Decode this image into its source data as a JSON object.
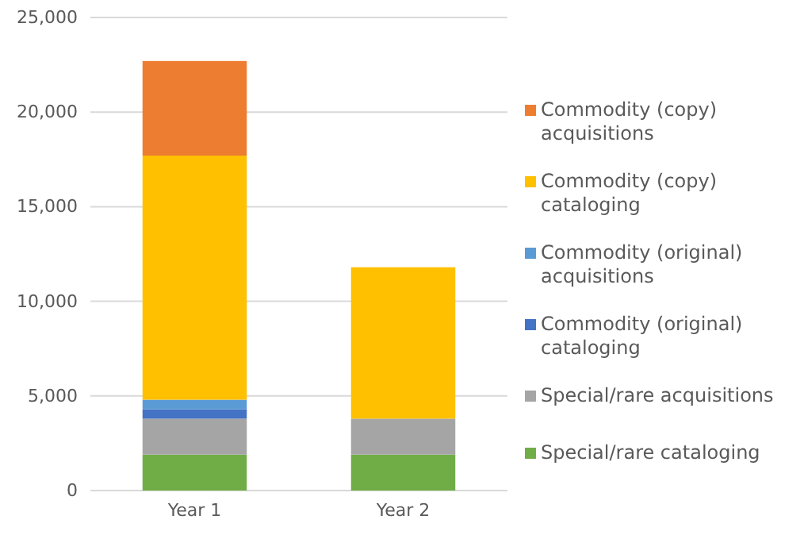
{
  "chart_data": {
    "type": "bar",
    "stacked": true,
    "categories": [
      "Year 1",
      "Year 2"
    ],
    "series": [
      {
        "name": "Special/rare cataloging",
        "color": "#70ad47",
        "values": [
          1900,
          1900
        ]
      },
      {
        "name": "Special/rare acquisitions",
        "color": "#a5a5a5",
        "values": [
          1900,
          1900
        ]
      },
      {
        "name": "Commodity (original) cataloging",
        "color": "#4472c4",
        "values": [
          500,
          0
        ]
      },
      {
        "name": "Commodity (original) acquisitions",
        "color": "#5b9bd5",
        "values": [
          500,
          0
        ]
      },
      {
        "name": "Commodity (copy) cataloging",
        "color": "#ffc000",
        "values": [
          12900,
          8000
        ]
      },
      {
        "name": "Commodity (copy) acquisitions",
        "color": "#ed7d31",
        "values": [
          5000,
          0
        ]
      }
    ],
    "ylim": [
      0,
      25000
    ],
    "yticks": [
      {
        "value": 0,
        "label": "0"
      },
      {
        "value": 5000,
        "label": "5,000"
      },
      {
        "value": 10000,
        "label": "10,000"
      },
      {
        "value": 15000,
        "label": "15,000"
      },
      {
        "value": 20000,
        "label": "20,000"
      },
      {
        "value": 25000,
        "label": "25,000"
      }
    ],
    "grid": "y",
    "legend": "right"
  }
}
